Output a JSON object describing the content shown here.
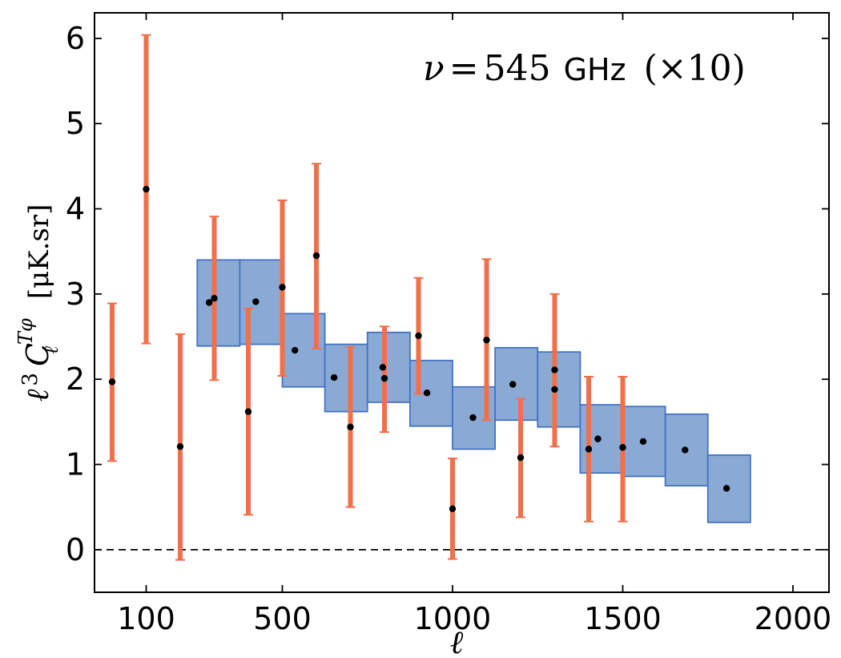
{
  "chart_data": {
    "type": "scatter",
    "title": "",
    "annotation": {
      "prefix": "ν",
      "eq": "=",
      "num": "545",
      "unit": "GHz",
      "scale": "(×10)"
    },
    "xlabel": "ℓ",
    "ylabel": {
      "pre": "ℓ",
      "pre_sup": "3",
      "C": "C",
      "sub": "ℓ",
      "sup": "Tφ",
      "unit": "[μK.sr]"
    },
    "xlim": [
      0,
      2000
    ],
    "ylim": [
      -0.5,
      6.3
    ],
    "x_tick_values": [
      100,
      500,
      1000,
      1500,
      2000
    ],
    "x_tick_labels": [
      "100",
      "500",
      "1000",
      "1500",
      "2000"
    ],
    "y_tick_values": [
      0,
      1,
      2,
      3,
      4,
      5,
      6
    ],
    "y_tick_labels": [
      "0",
      "1",
      "2",
      "3",
      "4",
      "5",
      "6"
    ],
    "zero_line": 0,
    "colors": {
      "errorbar": "#f0704a",
      "box_fill": "#8aaad5",
      "box_edge": "#4472c4",
      "point": "#000000",
      "zero_line": "#000000"
    },
    "series": [
      {
        "type": "box",
        "x_ranges": [
          [
            250,
            375
          ],
          [
            375,
            500
          ],
          [
            500,
            625
          ],
          [
            625,
            750
          ],
          [
            750,
            875
          ],
          [
            875,
            1000
          ],
          [
            1000,
            1125
          ],
          [
            1125,
            1250
          ],
          [
            1250,
            1375
          ],
          [
            1375,
            1500
          ],
          [
            1500,
            1625
          ],
          [
            1625,
            1750
          ],
          [
            1750,
            1875
          ]
        ],
        "centers": [
          285,
          422,
          537,
          652,
          795,
          925,
          1060,
          1177,
          1300,
          1427,
          1560,
          1683,
          1805
        ],
        "values": [
          2.9,
          2.91,
          2.34,
          2.02,
          2.14,
          1.84,
          1.55,
          1.94,
          1.88,
          1.3,
          1.27,
          1.17,
          0.72
        ],
        "lower": [
          2.39,
          2.41,
          1.91,
          1.62,
          1.73,
          1.45,
          1.18,
          1.52,
          1.44,
          0.9,
          0.86,
          0.75,
          0.32
        ],
        "upper": [
          3.4,
          3.4,
          2.77,
          2.41,
          2.55,
          2.22,
          1.91,
          2.37,
          2.32,
          1.7,
          1.68,
          1.59,
          1.11
        ]
      },
      {
        "type": "errorbar",
        "x": [
          0,
          100,
          200,
          300,
          400,
          500,
          600,
          700,
          800,
          900,
          1000,
          1100,
          1200,
          1300,
          1400,
          1500
        ],
        "values": [
          1.97,
          4.23,
          1.21,
          2.95,
          1.62,
          3.08,
          3.45,
          1.44,
          2.01,
          2.51,
          0.48,
          2.46,
          1.08,
          2.11,
          1.18,
          1.2
        ],
        "lower": [
          1.04,
          2.42,
          -0.12,
          1.99,
          0.41,
          2.04,
          2.36,
          0.5,
          1.38,
          1.83,
          -0.11,
          1.52,
          0.38,
          1.21,
          0.33,
          0.33
        ],
        "upper": [
          2.89,
          6.04,
          2.53,
          3.91,
          2.83,
          4.1,
          4.53,
          2.38,
          2.62,
          3.19,
          1.07,
          3.41,
          1.77,
          3.0,
          2.03,
          2.03
        ]
      }
    ]
  }
}
